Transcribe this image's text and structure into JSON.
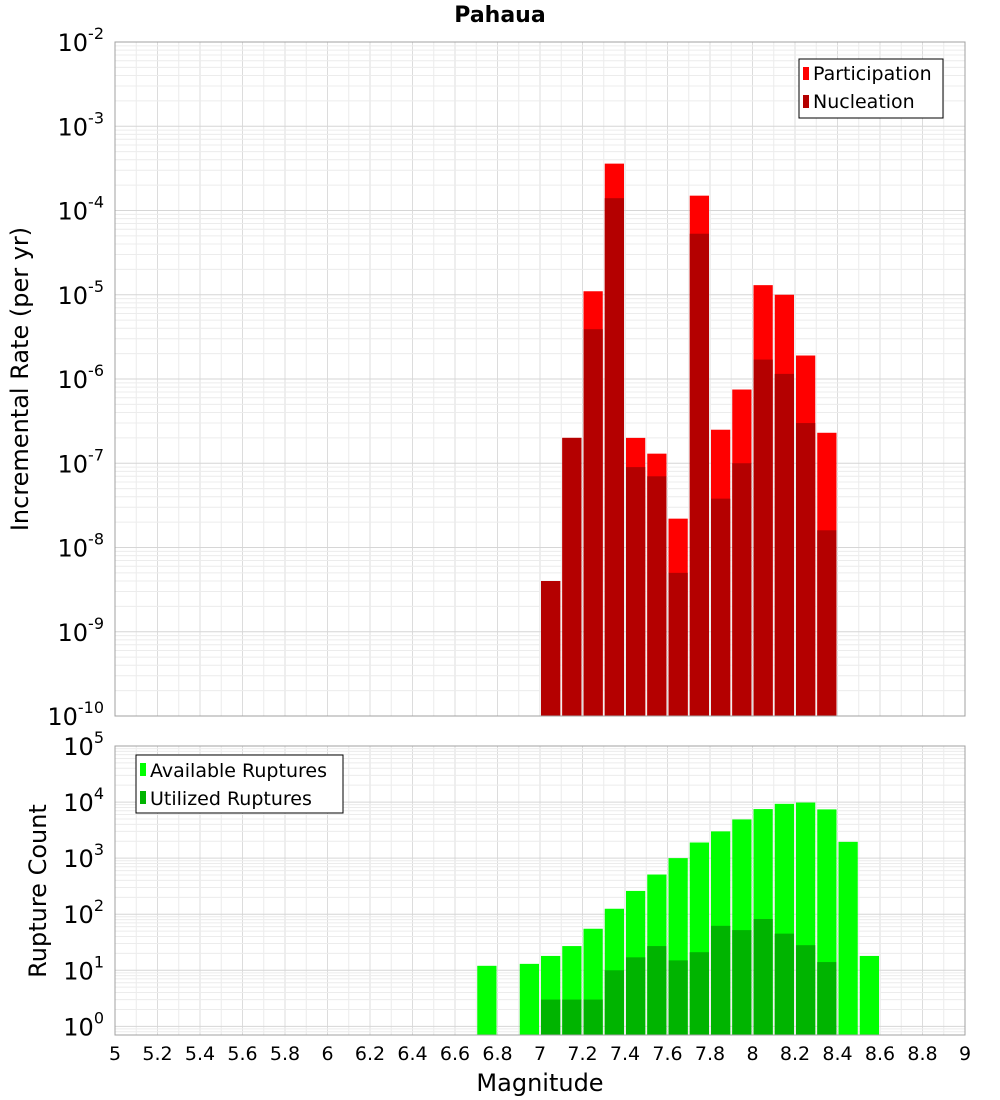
{
  "chart_data": [
    {
      "type": "bar",
      "title": "Pahaua",
      "xlabel": "",
      "ylabel": "Incremental Rate (per yr)",
      "yscale": "log",
      "ylim": [
        1e-10,
        0.01
      ],
      "xlim": [
        5,
        9
      ],
      "y_tick_exponents": [
        "-10",
        "-9",
        "-8",
        "-7",
        "-6",
        "-5",
        "-4",
        "-3",
        "-2"
      ],
      "grid": true,
      "legend_position": "top-right",
      "bar_width": 0.1,
      "x": [
        7.05,
        7.15,
        7.25,
        7.35,
        7.45,
        7.55,
        7.65,
        7.75,
        7.85,
        7.95,
        8.05,
        8.15,
        8.25,
        8.35
      ],
      "series": [
        {
          "name": "Participation",
          "color": "#ff0000",
          "values": [
            4e-09,
            2e-07,
            1.1e-05,
            0.00036,
            2e-07,
            1.3e-07,
            2.2e-08,
            0.00015,
            2.5e-07,
            7.5e-07,
            1.3e-05,
            1e-05,
            1.9e-06,
            2.3e-07
          ]
        },
        {
          "name": "Nucleation",
          "color": "#b40000",
          "values": [
            4e-09,
            2e-07,
            3.9e-06,
            0.00014,
            9e-08,
            7e-08,
            5e-09,
            5.3e-05,
            3.8e-08,
            1e-07,
            1.7e-06,
            1.15e-06,
            3e-07,
            1.6e-08
          ]
        }
      ]
    },
    {
      "type": "bar",
      "title": "",
      "xlabel": "Magnitude",
      "ylabel": "Rupture Count",
      "yscale": "log",
      "ylim": [
        0.7,
        100000
      ],
      "xlim": [
        5,
        9
      ],
      "x_ticks": [
        "5",
        "5.2",
        "5.4",
        "5.6",
        "5.8",
        "6",
        "6.2",
        "6.4",
        "6.6",
        "6.8",
        "7",
        "7.2",
        "7.4",
        "7.6",
        "7.8",
        "8",
        "8.2",
        "8.4",
        "8.6",
        "8.8",
        "9"
      ],
      "y_tick_exponents": [
        "0",
        "1",
        "2",
        "3",
        "4",
        "5"
      ],
      "grid": true,
      "legend_position": "top-left",
      "bar_width": 0.1,
      "series": [
        {
          "name": "Available Ruptures",
          "color": "#00ff00",
          "x": [
            6.75,
            6.95,
            7.05,
            7.15,
            7.25,
            7.35,
            7.45,
            7.55,
            7.65,
            7.75,
            7.85,
            7.95,
            8.05,
            8.15,
            8.25,
            8.35,
            8.45,
            8.55
          ],
          "values": [
            12,
            13,
            18,
            27,
            55,
            125,
            260,
            510,
            1000,
            1900,
            3000,
            4900,
            7500,
            9300,
            9800,
            7400,
            1950,
            18
          ]
        },
        {
          "name": "Utilized Ruptures",
          "color": "#00b400",
          "x": [
            7.05,
            7.15,
            7.25,
            7.35,
            7.45,
            7.55,
            7.65,
            7.75,
            7.85,
            7.95,
            8.05,
            8.15,
            8.25,
            8.35
          ],
          "values": [
            3,
            3,
            3,
            10,
            17,
            27,
            15,
            21,
            62,
            52,
            82,
            45,
            28,
            14
          ]
        }
      ]
    }
  ]
}
